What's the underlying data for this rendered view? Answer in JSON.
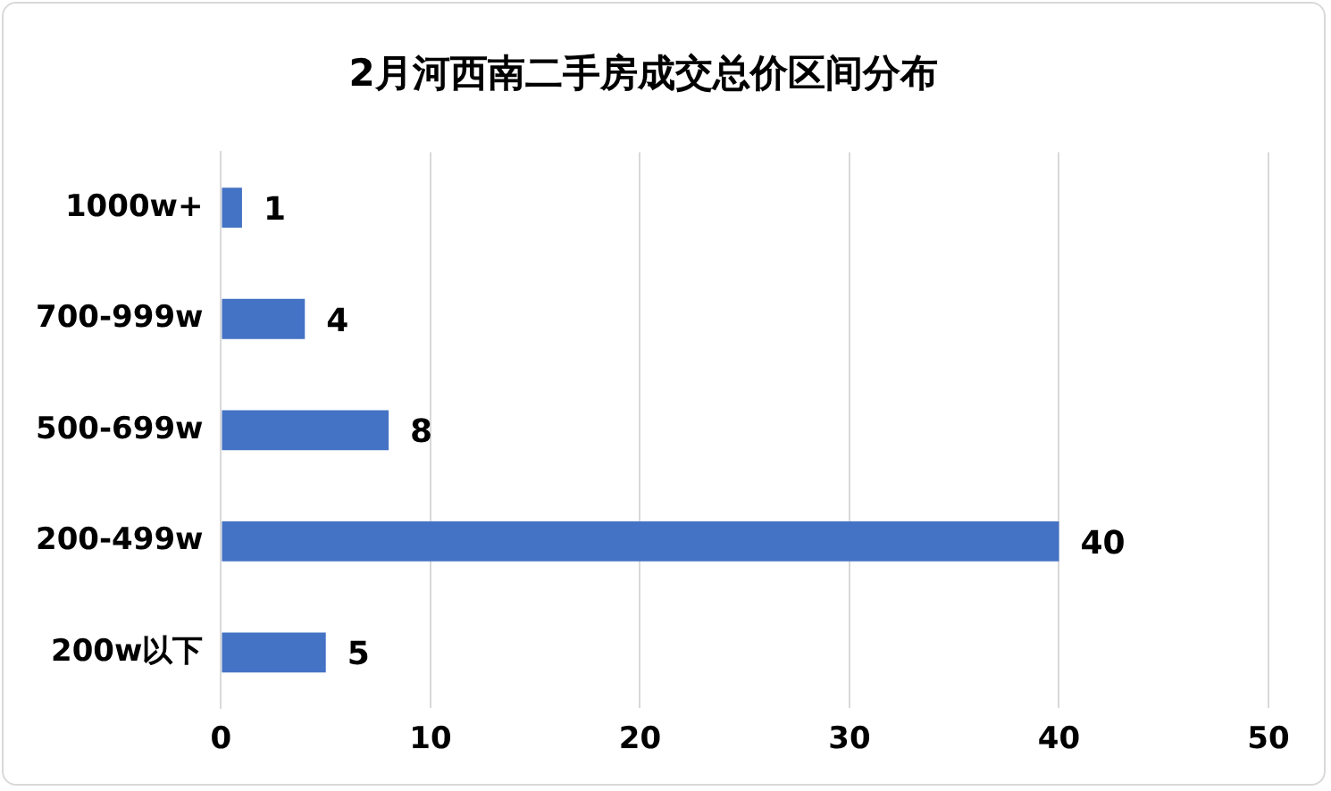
{
  "chart_data": {
    "type": "bar",
    "title": "2月河西南二手房成交总价区间分布",
    "orientation": "horizontal",
    "categories": [
      "1000w+",
      "700-999w",
      "500-699w",
      "200-499w",
      "200w以下"
    ],
    "values": [
      1,
      4,
      8,
      40,
      5
    ],
    "color": "#4472c4",
    "xlim": [
      0,
      50
    ],
    "xticks": [
      0,
      10,
      20,
      30,
      40,
      50
    ],
    "grid": "x",
    "data_labels": true,
    "legend": false
  }
}
